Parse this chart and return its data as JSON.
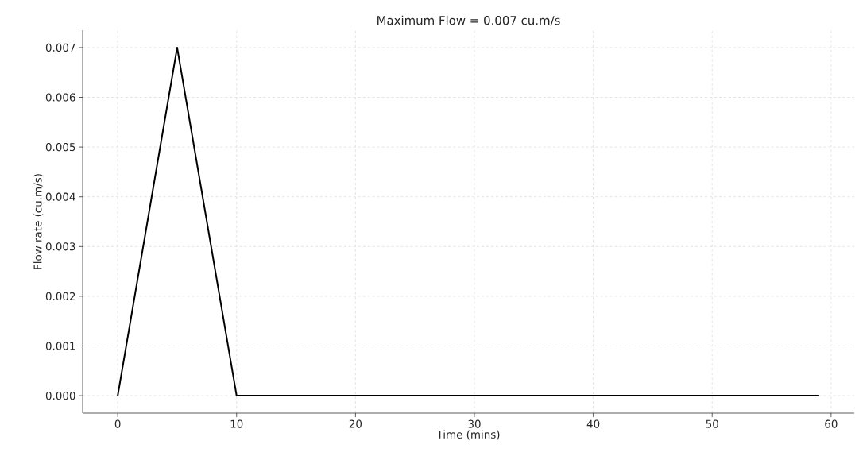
{
  "chart_data": {
    "type": "line",
    "title": "Maximum Flow = 0.007 cu.m/s",
    "xlabel": "Time (mins)",
    "ylabel": "Flow rate (cu.m/s)",
    "x": [
      0,
      5,
      10,
      59
    ],
    "series": [
      {
        "color": "#000000",
        "values": [
          0,
          0.007,
          0,
          0
        ]
      }
    ],
    "xlim": [
      -2.95,
      61.95
    ],
    "ylim": [
      -0.00035,
      0.00735
    ],
    "xticks": [
      0,
      10,
      20,
      30,
      40,
      50,
      60
    ],
    "yticks": [
      {
        "value": 0,
        "label": "0.000"
      },
      {
        "value": 0.001,
        "label": "0.001"
      },
      {
        "value": 0.002,
        "label": "0.002"
      },
      {
        "value": 0.003,
        "label": "0.003"
      },
      {
        "value": 0.004,
        "label": "0.004"
      },
      {
        "value": 0.005,
        "label": "0.005"
      },
      {
        "value": 0.006,
        "label": "0.006"
      },
      {
        "value": 0.007,
        "label": "0.007"
      }
    ],
    "grid": true,
    "line_style": "solid",
    "marker": "none"
  }
}
